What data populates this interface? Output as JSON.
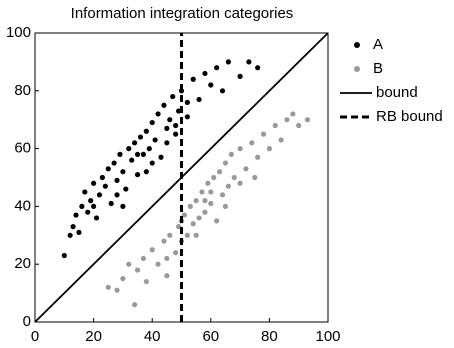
{
  "chart_data": {
    "type": "scatter",
    "title": "Information integration categories",
    "xlim": [
      0,
      100
    ],
    "ylim": [
      0,
      100
    ],
    "xticks": [
      0,
      20,
      40,
      60,
      80,
      100
    ],
    "yticks": [
      0,
      20,
      40,
      60,
      80,
      100
    ],
    "series": [
      {
        "name": "A",
        "color": "#000000",
        "x": [
          10,
          12,
          13,
          14,
          15,
          16,
          17,
          18,
          19,
          20,
          21,
          22,
          23,
          24,
          25,
          26,
          27,
          28,
          29,
          30,
          31,
          32,
          33,
          34,
          35,
          36,
          37,
          38,
          39,
          40,
          41,
          42,
          43,
          44,
          45,
          46,
          47,
          48,
          49,
          50,
          52,
          54,
          56,
          58,
          60,
          62,
          64,
          66,
          70,
          73,
          76,
          45,
          40,
          35,
          28,
          48,
          52,
          30,
          38,
          20
        ],
        "y": [
          23,
          30,
          33,
          37,
          31,
          40,
          45,
          38,
          42,
          48,
          36,
          44,
          50,
          47,
          53,
          41,
          55,
          49,
          58,
          52,
          46,
          60,
          56,
          62,
          51,
          64,
          58,
          66,
          60,
          69,
          63,
          72,
          57,
          75,
          67,
          70,
          78,
          65,
          73,
          80,
          71,
          84,
          77,
          86,
          82,
          88,
          80,
          90,
          85,
          90,
          88,
          62,
          55,
          58,
          44,
          68,
          76,
          40,
          52,
          40
        ]
      },
      {
        "name": "B",
        "color": "#999999",
        "x": [
          25,
          28,
          30,
          32,
          34,
          35,
          37,
          38,
          40,
          42,
          44,
          45,
          46,
          48,
          49,
          50,
          51,
          52,
          53,
          54,
          55,
          56,
          57,
          58,
          59,
          60,
          61,
          62,
          63,
          64,
          65,
          66,
          67,
          68,
          70,
          72,
          74,
          76,
          78,
          80,
          82,
          84,
          86,
          88,
          90,
          93,
          55,
          60,
          65,
          50,
          45,
          70,
          75,
          58
        ],
        "y": [
          12,
          11,
          15,
          20,
          6,
          18,
          22,
          14,
          25,
          20,
          28,
          16,
          30,
          24,
          33,
          28,
          37,
          30,
          40,
          34,
          42,
          36,
          45,
          38,
          48,
          41,
          50,
          35,
          52,
          44,
          55,
          47,
          58,
          50,
          60,
          53,
          62,
          57,
          65,
          60,
          68,
          63,
          70,
          72,
          68,
          70,
          30,
          45,
          40,
          35,
          22,
          48,
          50,
          42
        ]
      }
    ],
    "lines": [
      {
        "name": "bound",
        "style": "solid",
        "x": [
          0,
          100
        ],
        "y": [
          0,
          100
        ]
      },
      {
        "name": "RB bound",
        "style": "dashed",
        "x": [
          50,
          50
        ],
        "y": [
          0,
          100
        ]
      }
    ]
  }
}
